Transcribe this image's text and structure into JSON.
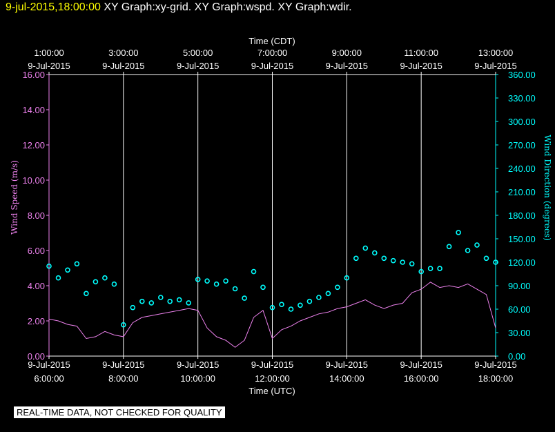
{
  "header": {
    "timestamp": "9-jul-2015,18:00:00",
    "graphs": "XY Graph:xy-grid.  XY Graph:wspd.  XY Graph:wdir."
  },
  "disclaimer": "REAL-TIME DATA, NOT CHECKED FOR QUALITY",
  "colors": {
    "speed": "#ee82ee",
    "direction": "#00ffff",
    "grid": "#ffffff",
    "axes": "#ffffff"
  },
  "chart_data": {
    "type": "line",
    "top_axis_label": "Time (CDT)",
    "bottom_axis_label": "Time (UTC)",
    "ylabel_left": "Wind Speed (m/s)",
    "ylabel_right": "Wind Direction (degrees)",
    "x_ticks_top": [
      {
        "time": "1:00:00",
        "date": "9-Jul-2015"
      },
      {
        "time": "3:00:00",
        "date": "9-Jul-2015"
      },
      {
        "time": "5:00:00",
        "date": "9-Jul-2015"
      },
      {
        "time": "7:00:00",
        "date": "9-Jul-2015"
      },
      {
        "time": "9:00:00",
        "date": "9-Jul-2015"
      },
      {
        "time": "11:00:00",
        "date": "9-Jul-2015"
      },
      {
        "time": "13:00:00",
        "date": "9-Jul-2015"
      }
    ],
    "x_ticks_bottom": [
      {
        "date": "9-Jul-2015",
        "time": "6:00:00"
      },
      {
        "date": "9-Jul-2015",
        "time": "8:00:00"
      },
      {
        "date": "9-Jul-2015",
        "time": "10:00:00"
      },
      {
        "date": "9-Jul-2015",
        "time": "12:00:00"
      },
      {
        "date": "9-Jul-2015",
        "time": "14:00:00"
      },
      {
        "date": "9-Jul-2015",
        "time": "16:00:00"
      },
      {
        "date": "9-Jul-2015",
        "time": "18:00:00"
      }
    ],
    "x_range_utc_hours": [
      6,
      18
    ],
    "y_left_range": [
      0,
      16
    ],
    "y_left_ticks": [
      "0.00",
      "2.00",
      "4.00",
      "6.00",
      "8.00",
      "10.00",
      "12.00",
      "14.00",
      "16.00"
    ],
    "y_right_range": [
      0,
      360
    ],
    "y_right_ticks": [
      "0.00",
      "30.00",
      "60.00",
      "90.00",
      "120.00",
      "150.00",
      "180.00",
      "210.00",
      "240.00",
      "270.00",
      "300.00",
      "330.00",
      "360.00"
    ],
    "grid": "vertical",
    "series": [
      {
        "name": "Wind Speed (m/s)",
        "axis": "left",
        "style": "line",
        "x": [
          6.0,
          6.25,
          6.5,
          6.75,
          7.0,
          7.25,
          7.5,
          7.75,
          8.0,
          8.25,
          8.5,
          8.75,
          9.0,
          9.25,
          9.5,
          9.75,
          10.0,
          10.25,
          10.5,
          10.75,
          11.0,
          11.25,
          11.5,
          11.75,
          12.0,
          12.25,
          12.5,
          12.75,
          13.0,
          13.25,
          13.5,
          13.75,
          14.0,
          14.25,
          14.5,
          14.75,
          15.0,
          15.25,
          15.5,
          15.75,
          16.0,
          16.25,
          16.5,
          16.75,
          17.0,
          17.25,
          17.5,
          17.75,
          18.0
        ],
        "y": [
          2.1,
          2.0,
          1.8,
          1.7,
          1.0,
          1.1,
          1.4,
          1.2,
          1.1,
          1.9,
          2.2,
          2.3,
          2.4,
          2.5,
          2.6,
          2.7,
          2.6,
          1.6,
          1.1,
          0.9,
          0.5,
          0.9,
          2.2,
          2.6,
          1.0,
          1.5,
          1.7,
          2.0,
          2.2,
          2.4,
          2.5,
          2.7,
          2.8,
          3.0,
          3.2,
          2.9,
          2.7,
          2.9,
          3.0,
          3.6,
          3.8,
          4.2,
          3.9,
          4.0,
          3.9,
          4.1,
          3.8,
          3.5,
          1.6
        ]
      },
      {
        "name": "Wind Direction (degrees)",
        "axis": "right",
        "style": "points",
        "x": [
          6.0,
          6.25,
          6.5,
          6.75,
          7.0,
          7.25,
          7.5,
          7.75,
          8.0,
          8.25,
          8.5,
          8.75,
          9.0,
          9.25,
          9.5,
          9.75,
          10.0,
          10.25,
          10.5,
          10.75,
          11.0,
          11.25,
          11.5,
          11.75,
          12.0,
          12.25,
          12.5,
          12.75,
          13.0,
          13.25,
          13.5,
          13.75,
          14.0,
          14.25,
          14.5,
          14.75,
          15.0,
          15.25,
          15.5,
          15.75,
          16.0,
          16.25,
          16.5,
          16.75,
          17.0,
          17.25,
          17.5,
          17.75,
          18.0
        ],
        "y": [
          115,
          100,
          110,
          118,
          80,
          95,
          100,
          92,
          40,
          62,
          70,
          68,
          75,
          70,
          72,
          68,
          98,
          96,
          92,
          96,
          86,
          74,
          108,
          88,
          62,
          66,
          60,
          65,
          70,
          75,
          80,
          88,
          100,
          125,
          138,
          132,
          125,
          122,
          120,
          118,
          108,
          112,
          112,
          140,
          158,
          135,
          142,
          125,
          120
        ]
      }
    ]
  }
}
